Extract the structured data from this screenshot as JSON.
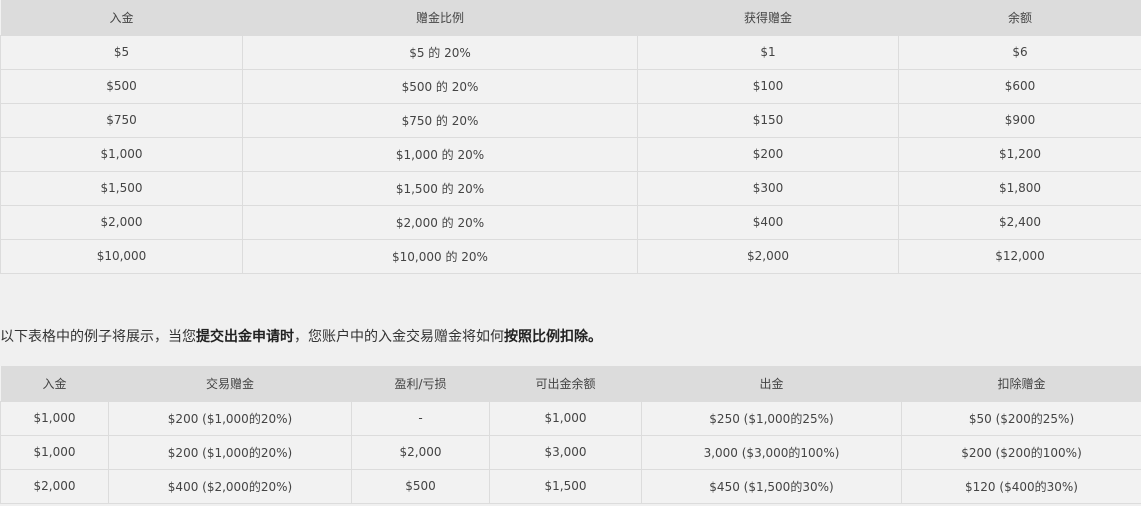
{
  "table1": {
    "headers": [
      "入金",
      "赠金比例",
      "获得赠金",
      "余额"
    ],
    "rows": [
      [
        "$5",
        "$5 的 20%",
        "$1",
        "$6"
      ],
      [
        "$500",
        "$500 的 20%",
        "$100",
        "$600"
      ],
      [
        "$750",
        "$750 的 20%",
        "$150",
        "$900"
      ],
      [
        "$1,000",
        "$1,000 的 20%",
        "$200",
        "$1,200"
      ],
      [
        "$1,500",
        "$1,500 的 20%",
        "$300",
        "$1,800"
      ],
      [
        "$2,000",
        "$2,000 的 20%",
        "$400",
        "$2,400"
      ],
      [
        "$10,000",
        "$10,000 的 20%",
        "$2,000",
        "$12,000"
      ]
    ]
  },
  "note": {
    "p1": "以下表格中的例子将展示，当您",
    "b1": "提交出金申请时",
    "p2": "，您账户中的入金交易赠金将如何",
    "b2": "按照比例扣除。"
  },
  "table2": {
    "headers": [
      "入金",
      "交易赠金",
      "盈利/亏损",
      "可出金余额",
      "出金",
      "扣除赠金"
    ],
    "rows": [
      [
        "$1,000",
        "$200 ($1,000的20%)",
        "-",
        "$1,000",
        "$250 ($1,000的25%)",
        "$50 ($200的25%)"
      ],
      [
        "$1,000",
        "$200 ($1,000的20%)",
        "$2,000",
        "$3,000",
        "3,000 ($3,000的100%)",
        "$200 ($200的100%)"
      ],
      [
        "$2,000",
        "$400 ($2,000的20%)",
        "$500",
        "$1,500",
        "$450 ($1,500的30%)",
        "$120 ($400的30%)"
      ]
    ]
  }
}
